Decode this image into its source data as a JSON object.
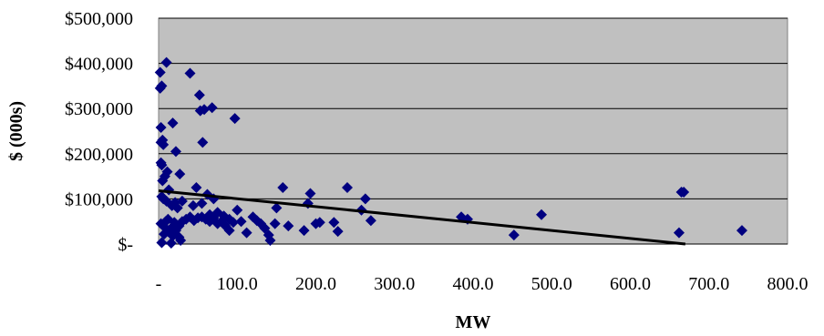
{
  "chart_data": {
    "type": "scatter",
    "title": "",
    "xlabel": "MW",
    "ylabel": "$ (000s)",
    "xlim": [
      0,
      800
    ],
    "ylim": [
      0,
      500000
    ],
    "x_ticks": [
      "-",
      "100.0",
      "200.0",
      "300.0",
      "400.0",
      "500.0",
      "600.0",
      "700.0",
      "800.0"
    ],
    "y_ticks": [
      "$-",
      "$100,000",
      "$200,000",
      "$300,000",
      "$400,000",
      "$500,000"
    ],
    "grid": "horizontal",
    "legend": "none",
    "colors": {
      "plot_background": "#c0c0c0",
      "marker": "#000080",
      "trendline": "#000000",
      "grid": "#000000"
    },
    "series": [
      {
        "marker": "diamond",
        "points": [
          [
            2,
            380000
          ],
          [
            2,
            345000
          ],
          [
            4,
            350000
          ],
          [
            10,
            402000
          ],
          [
            3,
            258000
          ],
          [
            3,
            225000
          ],
          [
            5,
            230000
          ],
          [
            6,
            220000
          ],
          [
            3,
            180000
          ],
          [
            4,
            175000
          ],
          [
            5,
            140000
          ],
          [
            8,
            150000
          ],
          [
            11,
            160000
          ],
          [
            13,
            120000
          ],
          [
            4,
            105000
          ],
          [
            6,
            100000
          ],
          [
            10,
            95000
          ],
          [
            17,
            85000
          ],
          [
            21,
            92000
          ],
          [
            24,
            80000
          ],
          [
            3,
            45000
          ],
          [
            6,
            40000
          ],
          [
            9,
            50000
          ],
          [
            12,
            55000
          ],
          [
            16,
            35000
          ],
          [
            20,
            48000
          ],
          [
            26,
            40000
          ],
          [
            30,
            50000
          ],
          [
            35,
            55000
          ],
          [
            40,
            60000
          ],
          [
            45,
            52000
          ],
          [
            50,
            58000
          ],
          [
            55,
            60000
          ],
          [
            60,
            55000
          ],
          [
            65,
            50000
          ],
          [
            70,
            58000
          ],
          [
            75,
            45000
          ],
          [
            80,
            50000
          ],
          [
            85,
            40000
          ],
          [
            90,
            55000
          ],
          [
            95,
            48000
          ],
          [
            22,
            30000
          ],
          [
            26,
            15000
          ],
          [
            28,
            8000
          ],
          [
            16,
            2000
          ],
          [
            4,
            3000
          ],
          [
            7,
            22000
          ],
          [
            12,
            28000
          ],
          [
            18,
            18000
          ],
          [
            40,
            378000
          ],
          [
            52,
            330000
          ],
          [
            53,
            295000
          ],
          [
            58,
            298000
          ],
          [
            68,
            302000
          ],
          [
            97,
            278000
          ],
          [
            18,
            268000
          ],
          [
            22,
            205000
          ],
          [
            27,
            155000
          ],
          [
            56,
            225000
          ],
          [
            48,
            125000
          ],
          [
            62,
            110000
          ],
          [
            70,
            100000
          ],
          [
            55,
            90000
          ],
          [
            44,
            85000
          ],
          [
            30,
            95000
          ],
          [
            65,
            65000
          ],
          [
            75,
            70000
          ],
          [
            83,
            62000
          ],
          [
            90,
            30000
          ],
          [
            100,
            75000
          ],
          [
            105,
            50000
          ],
          [
            112,
            25000
          ],
          [
            120,
            60000
          ],
          [
            125,
            52000
          ],
          [
            130,
            45000
          ],
          [
            135,
            35000
          ],
          [
            140,
            20000
          ],
          [
            142,
            8000
          ],
          [
            148,
            45000
          ],
          [
            150,
            80000
          ],
          [
            158,
            125000
          ],
          [
            165,
            40000
          ],
          [
            185,
            30000
          ],
          [
            190,
            90000
          ],
          [
            193,
            112000
          ],
          [
            200,
            45000
          ],
          [
            205,
            48000
          ],
          [
            223,
            48000
          ],
          [
            228,
            28000
          ],
          [
            240,
            125000
          ],
          [
            258,
            75000
          ],
          [
            263,
            100000
          ],
          [
            270,
            52000
          ],
          [
            385,
            60000
          ],
          [
            393,
            55000
          ],
          [
            452,
            20000
          ],
          [
            487,
            65000
          ],
          [
            662,
            25000
          ],
          [
            665,
            115000
          ],
          [
            668,
            115000
          ],
          [
            742,
            30000
          ]
        ]
      }
    ],
    "trendline": {
      "type": "linear",
      "points": [
        [
          0,
          118000
        ],
        [
          670,
          0
        ]
      ]
    }
  }
}
